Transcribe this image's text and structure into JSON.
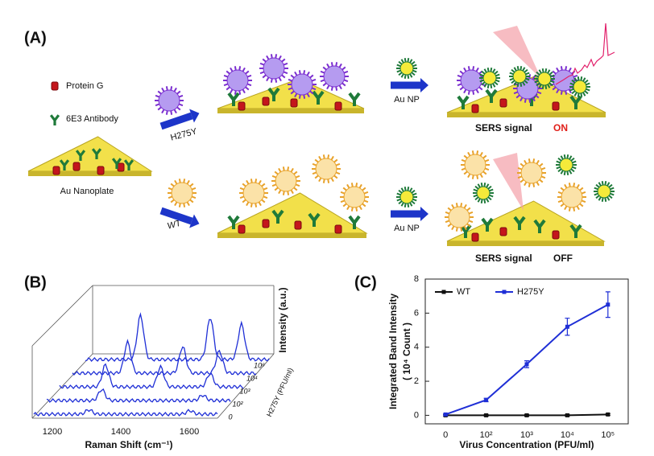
{
  "figure_labels": {
    "a": "(A)",
    "b": "(B)",
    "c": "(C)"
  },
  "panel_a": {
    "protein_g": "Protein G",
    "antibody": "6E3 Antibody",
    "nanoplate": "Au Nanoplate",
    "mutant": "H275Y",
    "wild_type": "WT",
    "np_top": "Au NP",
    "np_bottom": "Au NP",
    "signal_on_text": "SERS signal",
    "signal_on": "ON",
    "signal_off_text": "SERS signal",
    "signal_off": "OFF"
  },
  "panel_b": {
    "y_label": "Intensity (a.u.)",
    "x_label": "Raman Shift (cm⁻¹)",
    "x_tick_labels": [
      "1200",
      "1400",
      "1600"
    ],
    "z_label": "H275Y (PFU/ml)",
    "z_tick_labels": [
      "10⁶",
      "10⁴",
      "10³",
      "10²",
      "0"
    ]
  },
  "chart_data": {
    "type": "line",
    "y_label": "Integrated Band Intensity",
    "y_unit": "( 10⁴ Count )",
    "x_label": "Virus Concentration (PFU/ml)",
    "categories": [
      "0",
      "10²",
      "10³",
      "10⁴",
      "10⁵"
    ],
    "series": [
      {
        "name": "WT",
        "color": "#111111",
        "values": [
          0,
          0,
          0,
          0,
          0.05
        ],
        "errors": [
          0.05,
          0.05,
          0.05,
          0.05,
          0.05
        ]
      },
      {
        "name": "H275Y",
        "color": "#1f2fd6",
        "values": [
          0.05,
          0.9,
          3.0,
          5.2,
          6.5
        ],
        "errors": [
          0.05,
          0.1,
          0.2,
          0.5,
          0.75
        ]
      }
    ],
    "ylim": [
      -0.5,
      8
    ],
    "yticks": [
      0,
      2,
      4,
      6,
      8
    ],
    "legend": "top-left"
  }
}
